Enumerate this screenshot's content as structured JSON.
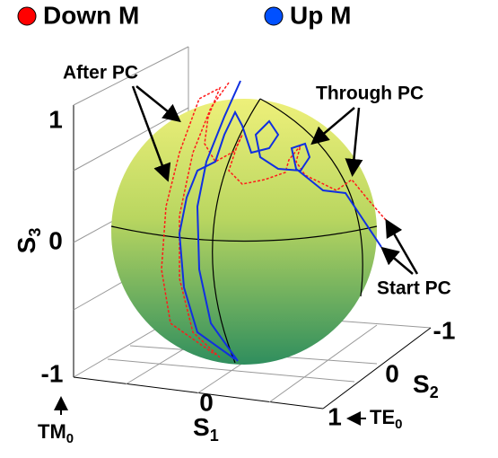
{
  "legend": [
    {
      "name": "Down M",
      "color": "#ff0000"
    },
    {
      "name": "Up M",
      "color": "#0050ff"
    }
  ],
  "annotations": {
    "after": "After PC",
    "through": "Through PC",
    "start": "Start PC"
  },
  "axes": {
    "s3": {
      "label": "S",
      "sub": "3",
      "ticks": [
        "1",
        "0",
        "-1"
      ]
    },
    "s1": {
      "label": "S",
      "sub": "1",
      "ticks": [
        "0"
      ]
    },
    "s2": {
      "label": "S",
      "sub": "2",
      "ticks": [
        "-1",
        "0",
        "1"
      ]
    },
    "tm": {
      "label": "TM",
      "sub": "0"
    },
    "te": {
      "label": "TE",
      "sub": "0"
    }
  }
}
